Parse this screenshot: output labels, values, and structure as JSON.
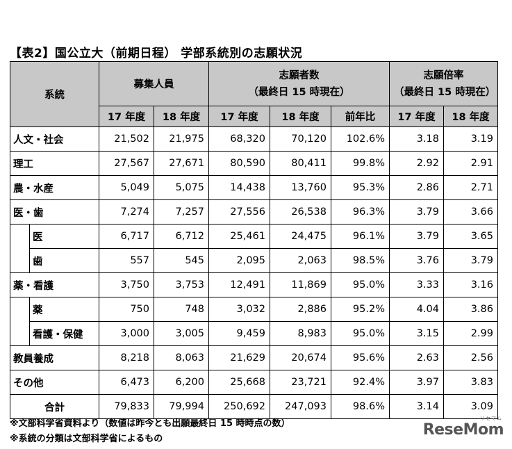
{
  "title": "【表2】国公立大（前期日程） 学部系統別の志願状況",
  "headers": {
    "category": "系統",
    "enrollment": "募集人員",
    "applicants_line1": "志願者数",
    "applicants_line2": "（最終日 15 時現在）",
    "ratio_line1": "志願倍率",
    "ratio_line2": "（最終日 15 時現在）",
    "y17": "17 年度",
    "y18": "18 年度",
    "yoy": "前年比"
  },
  "rows": [
    {
      "name": "人文・社会",
      "e17": "21,502",
      "e18": "21,975",
      "a17": "68,320",
      "a18": "70,120",
      "yoy": "102.6%",
      "r17": "3.18",
      "r18": "3.19"
    },
    {
      "name": "理工",
      "e17": "27,567",
      "e18": "27,671",
      "a17": "80,590",
      "a18": "80,411",
      "yoy": "99.8%",
      "r17": "2.92",
      "r18": "2.91"
    },
    {
      "name": "農・水産",
      "e17": "5,049",
      "e18": "5,075",
      "a17": "14,438",
      "a18": "13,760",
      "yoy": "95.3%",
      "r17": "2.86",
      "r18": "2.71"
    },
    {
      "name": "医・歯",
      "e17": "7,274",
      "e18": "7,257",
      "a17": "27,556",
      "a18": "26,538",
      "yoy": "96.3%",
      "r17": "3.79",
      "r18": "3.66"
    },
    {
      "name": "医",
      "e17": "6,717",
      "e18": "6,712",
      "a17": "25,461",
      "a18": "24,475",
      "yoy": "96.1%",
      "r17": "3.79",
      "r18": "3.65"
    },
    {
      "name": "歯",
      "e17": "557",
      "e18": "545",
      "a17": "2,095",
      "a18": "2,063",
      "yoy": "98.5%",
      "r17": "3.76",
      "r18": "3.79"
    },
    {
      "name": "薬・看護",
      "e17": "3,750",
      "e18": "3,753",
      "a17": "12,491",
      "a18": "11,869",
      "yoy": "95.0%",
      "r17": "3.33",
      "r18": "3.16"
    },
    {
      "name": "薬",
      "e17": "750",
      "e18": "748",
      "a17": "3,032",
      "a18": "2,886",
      "yoy": "95.2%",
      "r17": "4.04",
      "r18": "3.86"
    },
    {
      "name": "看護・保健",
      "e17": "3,000",
      "e18": "3,005",
      "a17": "9,459",
      "a18": "8,983",
      "yoy": "95.0%",
      "r17": "3.15",
      "r18": "2.99"
    },
    {
      "name": "教員養成",
      "e17": "8,218",
      "e18": "8,063",
      "a17": "21,629",
      "a18": "20,674",
      "yoy": "95.6%",
      "r17": "2.63",
      "r18": "2.56"
    },
    {
      "name": "その他",
      "e17": "6,473",
      "e18": "6,200",
      "a17": "25,668",
      "a18": "23,721",
      "yoy": "92.4%",
      "r17": "3.97",
      "r18": "3.83"
    },
    {
      "name": "合計",
      "e17": "79,833",
      "e18": "79,994",
      "a17": "250,692",
      "a18": "247,093",
      "yoy": "98.6%",
      "r17": "3.14",
      "r18": "3.09"
    }
  ],
  "notes": [
    "※文部科学省資料より（数値は昨今とも出願最終日 15 時時点の数）",
    "※系統の分類は文部科学省によるもの"
  ],
  "logo": {
    "text": "ReseMom",
    "ruby": "リセマム"
  }
}
